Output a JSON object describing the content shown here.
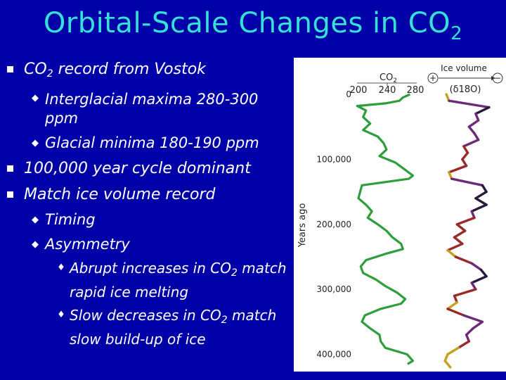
{
  "slide": {
    "title": "Orbital-Scale Changes in CO",
    "title_sub": "2"
  },
  "bullets": [
    {
      "level": 1,
      "text": "CO",
      "sub": "2",
      "after": " record from Vostok"
    },
    {
      "level": 2,
      "text": "Interglacial maxima 280-300 ppm"
    },
    {
      "level": 2,
      "text": "Glacial minima 180-190 ppm"
    },
    {
      "level": 1,
      "text": "100,000 year cycle dominant"
    },
    {
      "level": 1,
      "text": "Match ice volume record"
    },
    {
      "level": 2,
      "text": "Timing"
    },
    {
      "level": 2,
      "text": "Asymmetry"
    },
    {
      "level": 3,
      "text": "Abrupt increases in CO",
      "sub": "2",
      "after": " match rapid ice melting"
    },
    {
      "level": 3,
      "text": "Slow decreases in CO",
      "sub": "2",
      "after": " match slow build-up of ice"
    }
  ],
  "figure": {
    "co2_label": "CO",
    "co2_label_sub": "2",
    "co2_ticks": [
      "200",
      "240",
      "280"
    ],
    "ice_volume_label": "Ice volume",
    "plus_sign": "+",
    "minus_sign": "−",
    "delta_label": "(δ18O)",
    "y_axis_label": "Years ago",
    "y_ticks": [
      "0",
      "100,000",
      "200,000",
      "300,000",
      "400,000"
    ],
    "colors": {
      "co2_curve": "#2e9e3c",
      "ice_curve_dark": "#2a1a3a",
      "ice_curve_purple": "#6b2a7a",
      "ice_curve_red": "#9a2a2a",
      "ice_curve_amber": "#c8a020"
    },
    "chart_data": {
      "type": "line",
      "y_axis": "years ago",
      "ylim": [
        0,
        420000
      ],
      "series": [
        {
          "name": "CO2",
          "x_units": "ppm",
          "xlim": [
            180,
            300
          ],
          "points": [
            [
              0,
              280
            ],
            [
              5000,
              268
            ],
            [
              10000,
              262
            ],
            [
              14000,
              238
            ],
            [
              18000,
              190
            ],
            [
              25000,
              205
            ],
            [
              35000,
              200
            ],
            [
              45000,
              212
            ],
            [
              55000,
              200
            ],
            [
              65000,
              225
            ],
            [
              75000,
              235
            ],
            [
              85000,
              240
            ],
            [
              95000,
              228
            ],
            [
              105000,
              255
            ],
            [
              115000,
              270
            ],
            [
              125000,
              285
            ],
            [
              130000,
              278
            ],
            [
              140000,
              198
            ],
            [
              150000,
              195
            ],
            [
              160000,
              192
            ],
            [
              170000,
              205
            ],
            [
              180000,
              215
            ],
            [
              190000,
              208
            ],
            [
              200000,
              225
            ],
            [
              210000,
              240
            ],
            [
              220000,
              250
            ],
            [
              230000,
              265
            ],
            [
              238000,
              268
            ],
            [
              245000,
              240
            ],
            [
              255000,
              205
            ],
            [
              265000,
              196
            ],
            [
              275000,
              200
            ],
            [
              285000,
              222
            ],
            [
              295000,
              238
            ],
            [
              305000,
              258
            ],
            [
              315000,
              272
            ],
            [
              322000,
              265
            ],
            [
              330000,
              230
            ],
            [
              340000,
              203
            ],
            [
              350000,
              198
            ],
            [
              360000,
              212
            ],
            [
              370000,
              228
            ],
            [
              380000,
              230
            ],
            [
              390000,
              238
            ],
            [
              400000,
              275
            ],
            [
              410000,
              285
            ],
            [
              415000,
              276
            ]
          ]
        },
        {
          "name": "Ice volume (δ18O)",
          "x_units": "relative",
          "xlim": [
            0,
            1
          ],
          "points": [
            [
              0,
              0.18
            ],
            [
              10000,
              0.22
            ],
            [
              20000,
              0.82
            ],
            [
              30000,
              0.62
            ],
            [
              40000,
              0.66
            ],
            [
              50000,
              0.52
            ],
            [
              60000,
              0.6
            ],
            [
              70000,
              0.66
            ],
            [
              80000,
              0.44
            ],
            [
              90000,
              0.5
            ],
            [
              100000,
              0.42
            ],
            [
              110000,
              0.48
            ],
            [
              120000,
              0.22
            ],
            [
              130000,
              0.26
            ],
            [
              140000,
              0.72
            ],
            [
              150000,
              0.78
            ],
            [
              160000,
              0.62
            ],
            [
              170000,
              0.78
            ],
            [
              180000,
              0.56
            ],
            [
              190000,
              0.6
            ],
            [
              200000,
              0.34
            ],
            [
              210000,
              0.46
            ],
            [
              220000,
              0.3
            ],
            [
              230000,
              0.42
            ],
            [
              240000,
              0.2
            ],
            [
              250000,
              0.32
            ],
            [
              260000,
              0.56
            ],
            [
              270000,
              0.7
            ],
            [
              280000,
              0.78
            ],
            [
              290000,
              0.56
            ],
            [
              300000,
              0.62
            ],
            [
              310000,
              0.3
            ],
            [
              320000,
              0.34
            ],
            [
              330000,
              0.2
            ],
            [
              340000,
              0.44
            ],
            [
              350000,
              0.72
            ],
            [
              360000,
              0.58
            ],
            [
              370000,
              0.48
            ],
            [
              380000,
              0.52
            ],
            [
              390000,
              0.36
            ],
            [
              400000,
              0.2
            ],
            [
              410000,
              0.16
            ],
            [
              420000,
              0.24
            ]
          ]
        }
      ]
    }
  }
}
